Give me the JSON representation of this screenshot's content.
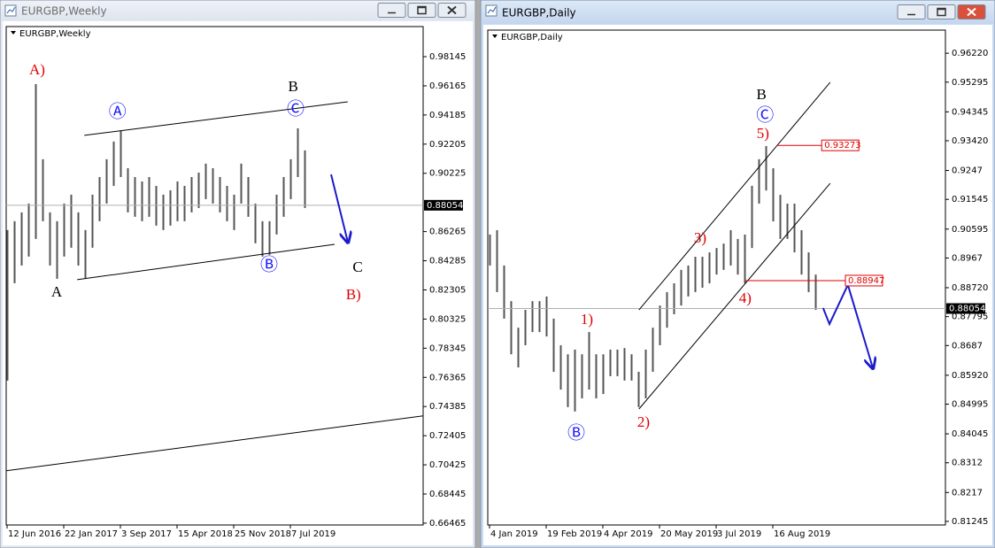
{
  "chart_data": [
    {
      "type": "range-bar",
      "window_title": "EURGBP,Weekly",
      "title": "EURGBP,Weekly",
      "active": false,
      "categories": [
        "12 Jun 2016",
        null,
        null,
        null,
        null,
        null,
        null,
        null,
        "22 Jan 2017",
        null,
        null,
        null,
        null,
        null,
        null,
        null,
        "3 Sep 2017",
        null,
        null,
        null,
        null,
        null,
        null,
        null,
        "15 Apr 2018",
        null,
        null,
        null,
        null,
        null,
        null,
        null,
        "25 Nov 2018",
        null,
        null,
        null,
        null,
        null,
        null,
        null,
        "7 Jul 2019",
        null,
        null
      ],
      "high": [
        0.8637,
        0.8697,
        0.8757,
        0.8817,
        0.9628,
        0.9118,
        0.8757,
        0.8697,
        0.8817,
        0.8877,
        0.8757,
        0.8637,
        0.8877,
        0.8997,
        0.9118,
        0.9238,
        0.931,
        0.9057,
        0.8997,
        0.8967,
        0.8997,
        0.8937,
        0.8877,
        0.8907,
        0.8967,
        0.8937,
        0.8997,
        0.9027,
        0.9088,
        0.9057,
        0.8997,
        0.8937,
        0.8877,
        0.9088,
        0.8997,
        0.8817,
        0.8697,
        0.8697,
        0.8877,
        0.8997,
        0.9118,
        0.9328,
        0.9178
      ],
      "low": [
        0.7615,
        0.8276,
        0.8396,
        0.8457,
        0.8577,
        0.8697,
        0.8396,
        0.8306,
        0.8457,
        0.8517,
        0.8396,
        0.8306,
        0.8517,
        0.8697,
        0.8817,
        0.8937,
        0.8997,
        0.8757,
        0.8727,
        0.8697,
        0.8727,
        0.8667,
        0.8637,
        0.8667,
        0.8697,
        0.8697,
        0.8757,
        0.8787,
        0.8847,
        0.8817,
        0.8757,
        0.8697,
        0.8637,
        0.8817,
        0.8727,
        0.8547,
        0.8457,
        0.8469,
        0.8607,
        0.8727,
        0.8847,
        0.8997,
        0.8787
      ],
      "color": "#555555",
      "xlim": [
        -0.125,
        58.75
      ],
      "ylim": [
        0.6634,
        1.0019
      ],
      "yticks": [
        0.98145,
        0.96165,
        0.94185,
        0.92205,
        0.90225,
        0.86265,
        0.84285,
        0.82305,
        0.80325,
        0.78345,
        0.76365,
        0.74385,
        0.72405,
        0.70425,
        0.68445,
        0.66465
      ],
      "last_price": 0.88054,
      "annotations": [
        {
          "text": "A)",
          "x": 4.25,
          "y": 0.9718,
          "color": "#e00000"
        },
        {
          "text": "Ⓐ",
          "x": 15.6,
          "y": 0.9436,
          "color": "#1a1aff"
        },
        {
          "text": "B",
          "x": 40.4,
          "y": 0.9604,
          "color": "#000000"
        },
        {
          "text": "Ⓒ",
          "x": 40.75,
          "y": 0.9454,
          "color": "#1a1aff"
        },
        {
          "text": "Ⓑ",
          "x": 37,
          "y": 0.8396,
          "color": "#1a1aff"
        },
        {
          "text": "A",
          "x": 7,
          "y": 0.821,
          "color": "#000000"
        },
        {
          "text": "C",
          "x": 49.5,
          "y": 0.8378,
          "color": "#000000"
        },
        {
          "text": "B)",
          "x": 48.9,
          "y": 0.8192,
          "color": "#e00000"
        }
      ],
      "lines": [
        {
          "x": [
            10.9,
            48.1
          ],
          "y": [
            0.928,
            0.9508
          ],
          "color": "#000000"
        },
        {
          "x": [
            9.9,
            46.25
          ],
          "y": [
            0.83,
            0.854
          ],
          "color": "#000000"
        },
        {
          "x": [
            -0.125,
            58.75
          ],
          "y": [
            0.7002,
            0.7375
          ],
          "color": "#000000"
        },
        {
          "x": [
            45.75,
            48.1
          ],
          "y": [
            0.9015,
            0.8559
          ],
          "color": "#1a1acc",
          "arrow": true
        }
      ],
      "levels": []
    },
    {
      "type": "range-bar",
      "window_title": "EURGBP,Daily",
      "title": "EURGBP,Daily",
      "active": true,
      "categories": [
        "4 Jan 2019",
        null,
        null,
        null,
        null,
        null,
        null,
        null,
        "19 Feb 2019",
        null,
        null,
        null,
        null,
        null,
        null,
        null,
        "4 Apr 2019",
        null,
        null,
        null,
        null,
        null,
        null,
        null,
        "20 May 2019",
        null,
        null,
        null,
        null,
        null,
        null,
        null,
        "3 Jul 2019",
        null,
        null,
        null,
        null,
        null,
        null,
        null,
        "16 Aug 2019",
        null,
        null,
        null,
        null,
        null,
        null
      ],
      "high": [
        0.9042,
        0.9056,
        0.8943,
        0.8829,
        0.8744,
        0.8801,
        0.8829,
        0.8829,
        0.8844,
        0.8773,
        0.8688,
        0.8659,
        0.8674,
        0.8659,
        0.873,
        0.8659,
        0.8659,
        0.8674,
        0.8674,
        0.8679,
        0.8659,
        0.8603,
        0.8674,
        0.8744,
        0.8815,
        0.8858,
        0.8886,
        0.8929,
        0.8943,
        0.8971,
        0.8971,
        0.8985,
        0.8999,
        0.9013,
        0.9056,
        0.9028,
        0.9042,
        0.9198,
        0.9283,
        0.9325,
        0.9254,
        0.9169,
        0.9141,
        0.9141,
        0.9056,
        0.8985,
        0.8914
      ],
      "low": [
        0.8943,
        0.8858,
        0.8773,
        0.8659,
        0.8617,
        0.8688,
        0.873,
        0.873,
        0.8716,
        0.8603,
        0.8546,
        0.849,
        0.8476,
        0.8518,
        0.8546,
        0.8518,
        0.8532,
        0.8589,
        0.8589,
        0.8575,
        0.8575,
        0.849,
        0.8518,
        0.8603,
        0.8688,
        0.8744,
        0.8787,
        0.8815,
        0.8844,
        0.8858,
        0.8872,
        0.8886,
        0.8914,
        0.8929,
        0.8943,
        0.8914,
        0.8886,
        0.8999,
        0.9141,
        0.9183,
        0.9084,
        0.9028,
        0.9028,
        0.8985,
        0.8914,
        0.8858,
        0.8801
      ],
      "color": "#555555",
      "xlim": [
        -0.25,
        64.375
      ],
      "ylim": [
        0.8113,
        0.9696
      ],
      "yticks": [
        {
          "value": 0.9622,
          "label": "0.96220"
        },
        0.95295,
        0.94345,
        {
          "value": 0.9342,
          "label": "0.93420"
        },
        0.9247,
        0.91545,
        0.90595,
        0.8967,
        {
          "value": 0.8872,
          "label": "0.88720"
        },
        0.87795,
        0.8687,
        {
          "value": 0.8592,
          "label": "0.85920"
        },
        0.84995,
        0.84045,
        0.8312,
        0.8217,
        0.81245
      ],
      "last_price": 0.88054,
      "annotations": [
        {
          "text": "B",
          "x": 38.4,
          "y": 0.9486,
          "color": "#000000"
        },
        {
          "text": "Ⓒ",
          "x": 38.9,
          "y": 0.9421,
          "color": "#1a1aff"
        },
        {
          "text": "5)",
          "x": 38.6,
          "y": 0.9362,
          "color": "#e00000"
        },
        {
          "text": "3)",
          "x": 29.75,
          "y": 0.9028,
          "color": "#e00000"
        },
        {
          "text": "4)",
          "x": 36.1,
          "y": 0.8835,
          "color": "#e00000"
        },
        {
          "text": "1)",
          "x": 13.75,
          "y": 0.8767,
          "color": "#e00000"
        },
        {
          "text": "2)",
          "x": 21.75,
          "y": 0.8439,
          "color": "#e00000"
        },
        {
          "text": "Ⓑ",
          "x": 12.25,
          "y": 0.8405,
          "color": "#1a1aff"
        }
      ],
      "lines": [
        {
          "x": [
            21.1,
            48.1
          ],
          "y": [
            0.8801,
            0.9529
          ],
          "color": "#000000"
        },
        {
          "x": [
            21.1,
            48.1
          ],
          "y": [
            0.8484,
            0.9206
          ],
          "color": "#000000"
        },
        {
          "x": [
            47.1,
            48,
            50.6,
            54.1
          ],
          "y": [
            0.8807,
            0.8756,
            0.8881,
            0.8617
          ],
          "color": "#1a1acc",
          "arrow": true
        }
      ],
      "levels": [
        {
          "value": 0.93273,
          "x": [
            40.6,
            46.9
          ],
          "color": "#e00000"
        },
        {
          "value": 0.88947,
          "x": [
            36.1,
            50.25
          ],
          "color": "#e00000"
        }
      ]
    }
  ]
}
